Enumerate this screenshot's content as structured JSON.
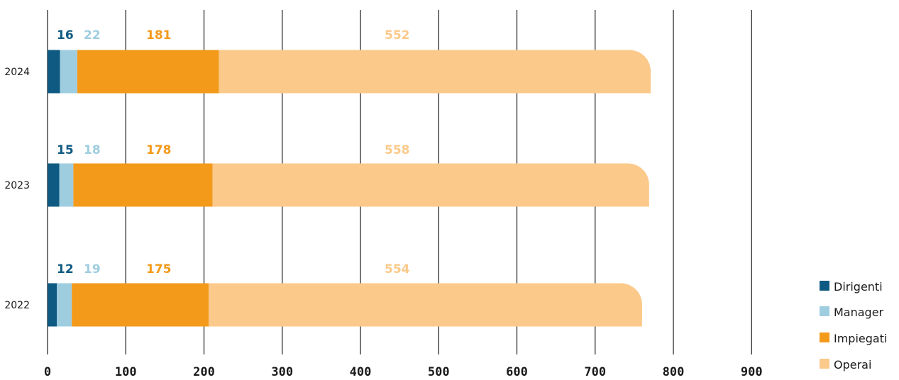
{
  "chart_data": {
    "type": "bar",
    "orientation": "horizontal",
    "stacked": true,
    "categories": [
      "2024",
      "2023",
      "2022"
    ],
    "series": [
      {
        "name": "Dirigenti",
        "values": [
          16,
          15,
          12
        ],
        "color": "#0f5a82"
      },
      {
        "name": "Manager",
        "values": [
          22,
          18,
          19
        ],
        "color": "#9fcde0"
      },
      {
        "name": "Impiegati",
        "values": [
          181,
          178,
          175
        ],
        "color": "#f39a1b"
      },
      {
        "name": "Operai",
        "values": [
          552,
          558,
          554
        ],
        "color": "#fbc98a"
      }
    ],
    "xticks": [
      0,
      100,
      200,
      300,
      400,
      500,
      600,
      700,
      800,
      900
    ],
    "xlim": [
      0,
      900
    ],
    "grid": true,
    "legend_position": "bottom-right",
    "title": "",
    "xlabel": "",
    "ylabel": ""
  }
}
